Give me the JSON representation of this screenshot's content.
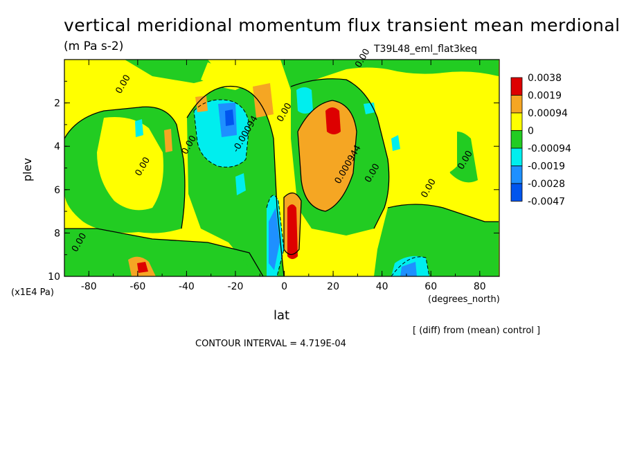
{
  "title": "vertical meridional momentum flux transient mean merdional",
  "units": "(m Pa s-2)",
  "run_label": "T39L48_eml_flat3keq",
  "diff_note": "[ (diff) from (mean) control ]",
  "contour_interval": "CONTOUR INTERVAL = 4.719E-04",
  "chart_data": {
    "type": "heatmap",
    "title": "vertical meridional momentum flux transient mean merdional",
    "xlabel": "lat",
    "x_units": "(degrees_north)",
    "ylabel": "plev",
    "y_units": "(x1E4 Pa)",
    "xlim": [
      -90,
      88
    ],
    "ylim": [
      10,
      0
    ],
    "x_ticks": [
      "-80",
      "-60",
      "-40",
      "-20",
      "0",
      "20",
      "40",
      "60",
      "80"
    ],
    "x_tick_values": [
      -80,
      -60,
      -40,
      -20,
      0,
      20,
      40,
      60,
      80
    ],
    "y_ticks": [
      "2",
      "4",
      "6",
      "8",
      "10"
    ],
    "y_tick_values": [
      2,
      4,
      6,
      8,
      10
    ],
    "legend": {
      "labels": [
        "0.0038",
        "0.0019",
        "0.00094",
        "0",
        "-0.00094",
        "-0.0019",
        "-0.0028",
        "-0.0047"
      ],
      "colors": [
        "#dd0000",
        "#f5a623",
        "#ffff00",
        "#22cc22",
        "#00eeee",
        "#1e90ff",
        "#0055ee"
      ],
      "placement": "right"
    },
    "contour_labels": [
      {
        "text": "0.00",
        "lat": -65,
        "plev": 1.2
      },
      {
        "text": "0.00",
        "lat": -83,
        "plev": 8.5
      },
      {
        "text": "0.00",
        "lat": -57,
        "plev": 5.0
      },
      {
        "text": "0.00",
        "lat": -38,
        "plev": 4.0
      },
      {
        "text": "0.00",
        "lat": 1,
        "plev": 2.5
      },
      {
        "text": "0.00",
        "lat": 37,
        "plev": 5.3
      },
      {
        "text": "0.00",
        "lat": 60,
        "plev": 6.0
      },
      {
        "text": "0.00",
        "lat": 75,
        "plev": 4.7
      },
      {
        "text": "0.00",
        "lat": 33,
        "plev": 0.0
      },
      {
        "text": "-0.00094",
        "lat": -15,
        "plev": 3.5
      },
      {
        "text": "0.000944",
        "lat": 27,
        "plev": 4.9
      }
    ]
  }
}
